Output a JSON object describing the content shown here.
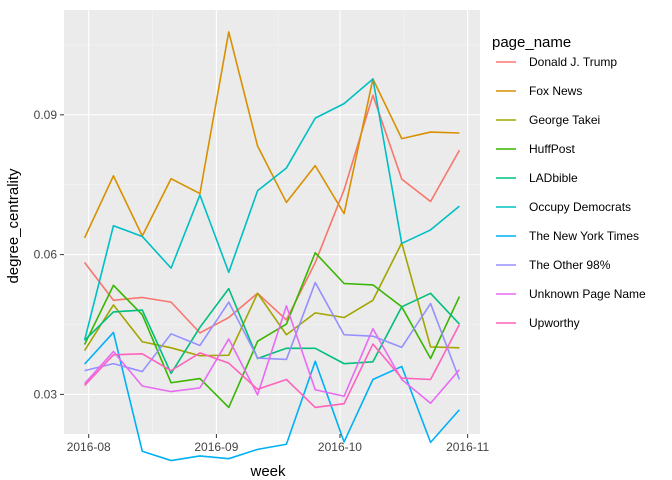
{
  "chart_data": {
    "type": "line",
    "title": "",
    "xlabel": "week",
    "ylabel": "degree_centrality",
    "xaxis": {
      "ticks": [
        "2016-08-01",
        "2016-09-01",
        "2016-10-01",
        "2016-11-01"
      ],
      "tick_labels": [
        "2016-08",
        "2016-09",
        "2016-10",
        "2016-11"
      ],
      "range": [
        "2016-07-26",
        "2016-11-04"
      ]
    },
    "yaxis": {
      "ticks": [
        0.03,
        0.06,
        0.09
      ],
      "tick_labels": [
        "0.03",
        "0.06",
        "0.09"
      ],
      "range": [
        0.0215,
        0.1125
      ]
    },
    "grid": true,
    "legend": {
      "title": "page_name",
      "placement": "right"
    },
    "x": [
      "2016-07-31",
      "2016-08-07",
      "2016-08-14",
      "2016-08-21",
      "2016-08-28",
      "2016-09-04",
      "2016-09-11",
      "2016-09-18",
      "2016-09-25",
      "2016-10-02",
      "2016-10-09",
      "2016-10-16",
      "2016-10-23",
      "2016-10-30"
    ],
    "series": [
      {
        "name": "Donald J. Trump",
        "color": "#F8766D",
        "values": [
          0.0583,
          0.0502,
          0.0508,
          0.0498,
          0.0432,
          0.0465,
          0.0517,
          0.046,
          0.0583,
          0.0739,
          0.0942,
          0.0762,
          0.0714,
          0.0824
        ]
      },
      {
        "name": "Fox News",
        "color": "#D89000",
        "values": [
          0.0636,
          0.0769,
          0.064,
          0.0763,
          0.0731,
          0.1078,
          0.0833,
          0.0712,
          0.0791,
          0.0688,
          0.0977,
          0.0849,
          0.0863,
          0.0861
        ]
      },
      {
        "name": "George Takei",
        "color": "#A3A500",
        "values": [
          0.0394,
          0.0492,
          0.0413,
          0.04,
          0.0383,
          0.0384,
          0.0517,
          0.0428,
          0.0475,
          0.0465,
          0.0502,
          0.0625,
          0.0402,
          0.04
        ]
      },
      {
        "name": "HuffPost",
        "color": "#39B600",
        "values": [
          0.0407,
          0.0534,
          0.0471,
          0.0325,
          0.0334,
          0.0272,
          0.0414,
          0.0451,
          0.0604,
          0.0538,
          0.0535,
          0.0488,
          0.0377,
          0.051
        ]
      },
      {
        "name": "LADbible",
        "color": "#00BF7D",
        "values": [
          0.0416,
          0.0477,
          0.0481,
          0.0345,
          0.0444,
          0.0527,
          0.0377,
          0.0399,
          0.0399,
          0.0366,
          0.037,
          0.0488,
          0.0517,
          0.0451
        ]
      },
      {
        "name": "Occupy Democrats",
        "color": "#00BFC4",
        "values": [
          0.0416,
          0.0662,
          0.0639,
          0.0571,
          0.0728,
          0.0562,
          0.0737,
          0.0786,
          0.0893,
          0.0924,
          0.0977,
          0.0624,
          0.0653,
          0.0704
        ]
      },
      {
        "name": "The New York Times",
        "color": "#00B0F6",
        "values": [
          0.0365,
          0.0433,
          0.0178,
          0.0158,
          0.0168,
          0.0162,
          0.0182,
          0.0193,
          0.0371,
          0.0198,
          0.0332,
          0.036,
          0.0197,
          0.0267
        ]
      },
      {
        "name": "The Other 98%",
        "color": "#9590FF",
        "values": [
          0.0351,
          0.0366,
          0.0349,
          0.043,
          0.0405,
          0.0498,
          0.0378,
          0.0375,
          0.054,
          0.0428,
          0.0425,
          0.0401,
          0.0495,
          0.0332
        ]
      },
      {
        "name": "Unknown Page Name",
        "color": "#E76BF3",
        "values": [
          0.0323,
          0.0392,
          0.0318,
          0.0306,
          0.0314,
          0.0419,
          0.0299,
          0.049,
          0.031,
          0.0296,
          0.0441,
          0.0332,
          0.0281,
          0.0353
        ]
      },
      {
        "name": "Upworthy",
        "color": "#FF62BC",
        "values": [
          0.0319,
          0.0385,
          0.0387,
          0.0351,
          0.0389,
          0.0367,
          0.0311,
          0.0332,
          0.0272,
          0.028,
          0.0408,
          0.0335,
          0.0332,
          0.045
        ]
      }
    ]
  }
}
